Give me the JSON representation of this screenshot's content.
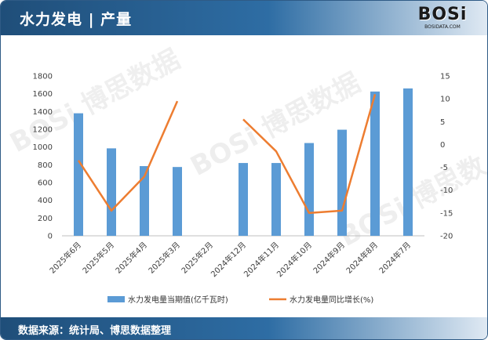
{
  "header": {
    "title": "水力发电 | 产量"
  },
  "logo": {
    "text": "BOSi",
    "url": "BOSIDATA.COM"
  },
  "footer": {
    "source": "数据来源：统计局、博思数据整理"
  },
  "colors": {
    "bar": "#5b9bd5",
    "line": "#ed7d31",
    "header": "#1f4e79"
  },
  "chart_data": {
    "type": "bar+line",
    "categories": [
      "2025年6月",
      "2025年5月",
      "2025年4月",
      "2025年3月",
      "2025年2月",
      "2024年12月",
      "2024年11月",
      "2024年10月",
      "2024年9月",
      "2024年8月",
      "2024年7月"
    ],
    "series": [
      {
        "name": "水力发电量当期值(亿千瓦时)",
        "type": "bar",
        "axis": "left",
        "values": [
          1380,
          985,
          785,
          775,
          null,
          820,
          820,
          1045,
          1195,
          1625,
          1660
        ]
      },
      {
        "name": "水力发电量同比增长(%)",
        "type": "line",
        "axis": "right",
        "values": [
          -3.5,
          -14.5,
          -7.0,
          9.5,
          null,
          5.5,
          -1.5,
          -15.0,
          -14.5,
          11.0,
          null
        ]
      }
    ],
    "y_left": {
      "min": 0,
      "max": 1800,
      "ticks": [
        0,
        200,
        400,
        600,
        800,
        1000,
        1200,
        1400,
        1600,
        1800
      ]
    },
    "y_right": {
      "min": -20,
      "max": 15,
      "ticks": [
        -20,
        -15,
        -10,
        -5,
        0,
        5,
        10,
        15
      ]
    },
    "legend_position": "bottom",
    "grid": false
  }
}
